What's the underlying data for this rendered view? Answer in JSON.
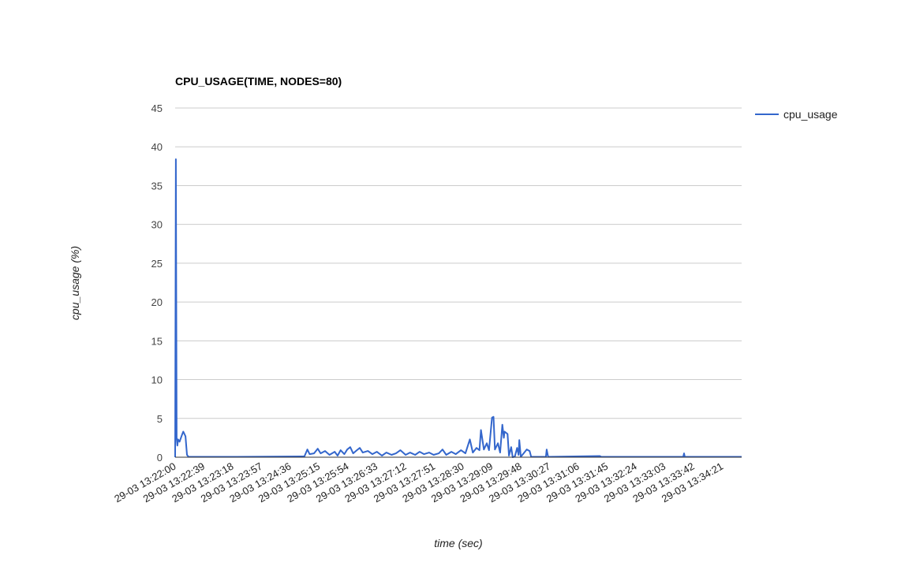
{
  "chart_data": {
    "type": "line",
    "title": "CPU_USAGE(TIME, NODES=80)",
    "xlabel": "time (sec)",
    "ylabel": "cpu_usage (%)",
    "ylim": [
      0,
      45
    ],
    "yticks": [
      0,
      5,
      10,
      15,
      20,
      25,
      30,
      35,
      40,
      45
    ],
    "xlim": [
      "29-03 13:22:00",
      "29-03 13:34:47"
    ],
    "xtick_labels": [
      "29-03 13:22:00",
      "29-03 13:22:39",
      "29-03 13:23:18",
      "29-03 13:23:57",
      "29-03 13:24:36",
      "29-03 13:25:15",
      "29-03 13:25:54",
      "29-03 13:26:33",
      "29-03 13:27:12",
      "29-03 13:27:51",
      "29-03 13:28:30",
      "29-03 13:29:09",
      "29-03 13:29:48",
      "29-03 13:30:27",
      "29-03 13:31:06",
      "29-03 13:31:45",
      "29-03 13:32:24",
      "29-03 13:33:03",
      "29-03 13:33:42",
      "29-03 13:34:21"
    ],
    "grid": true,
    "legend": "right",
    "series": [
      {
        "name": "cpu_usage",
        "color": "#3366cc",
        "x": [
          "13:22:00",
          "13:22:01",
          "13:22:02",
          "13:22:03",
          "13:22:04",
          "13:22:06",
          "13:22:09",
          "13:22:11",
          "13:22:13",
          "13:22:14",
          "13:22:16",
          "13:22:18",
          "13:23:23",
          "13:24:55",
          "13:24:59",
          "13:25:02",
          "13:25:08",
          "13:25:13",
          "13:25:17",
          "13:25:23",
          "13:25:29",
          "13:25:36",
          "13:25:40",
          "13:25:44",
          "13:25:49",
          "13:25:53",
          "13:25:57",
          "13:26:01",
          "13:26:06",
          "13:26:10",
          "13:26:14",
          "13:26:21",
          "13:26:27",
          "13:26:33",
          "13:26:40",
          "13:26:46",
          "13:26:53",
          "13:26:59",
          "13:27:05",
          "13:27:12",
          "13:27:18",
          "13:27:25",
          "13:27:31",
          "13:27:37",
          "13:27:44",
          "13:27:50",
          "13:27:57",
          "13:28:02",
          "13:28:07",
          "13:28:14",
          "13:28:20",
          "13:28:27",
          "13:28:33",
          "13:28:39",
          "13:28:43",
          "13:28:48",
          "13:28:52",
          "13:28:54",
          "13:28:58",
          "13:29:02",
          "13:29:05",
          "13:29:09",
          "13:29:11",
          "13:29:13",
          "13:29:17",
          "13:29:20",
          "13:29:23",
          "13:29:25",
          "13:29:26",
          "13:29:30",
          "13:29:32",
          "13:29:35",
          "13:29:37",
          "13:29:40",
          "13:29:43",
          "13:29:45",
          "13:29:46",
          "13:29:48",
          "13:29:56",
          "13:30:00",
          "13:30:02",
          "13:30:22",
          "13:30:23",
          "13:30:25",
          "13:31:35",
          "13:31:37",
          "13:33:28",
          "13:33:29",
          "13:33:30",
          "13:34:47"
        ],
        "values": [
          0,
          38.4,
          2.5,
          1.5,
          2.3,
          2.0,
          2.8,
          3.3,
          2.9,
          2.7,
          0.3,
          0.05,
          0.05,
          0.1,
          1.0,
          0.4,
          0.5,
          1.1,
          0.5,
          0.8,
          0.3,
          0.7,
          0.2,
          0.9,
          0.4,
          1.0,
          1.3,
          0.5,
          0.9,
          1.2,
          0.6,
          0.8,
          0.4,
          0.7,
          0.2,
          0.6,
          0.3,
          0.5,
          0.9,
          0.3,
          0.6,
          0.3,
          0.7,
          0.4,
          0.6,
          0.3,
          0.5,
          1.0,
          0.3,
          0.7,
          0.4,
          0.9,
          0.5,
          2.3,
          0.6,
          1.2,
          0.9,
          3.5,
          1.0,
          1.8,
          0.9,
          5.1,
          5.2,
          1.0,
          1.8,
          0.6,
          4.2,
          2.5,
          3.3,
          3.0,
          0.2,
          1.3,
          0.0,
          0.1,
          1.2,
          0.3,
          2.2,
          0.05,
          1.0,
          0.8,
          0.05,
          0.05,
          1.0,
          0.05,
          0.15,
          0.05,
          0.05,
          0.5,
          0.05,
          0.05
        ]
      }
    ]
  }
}
